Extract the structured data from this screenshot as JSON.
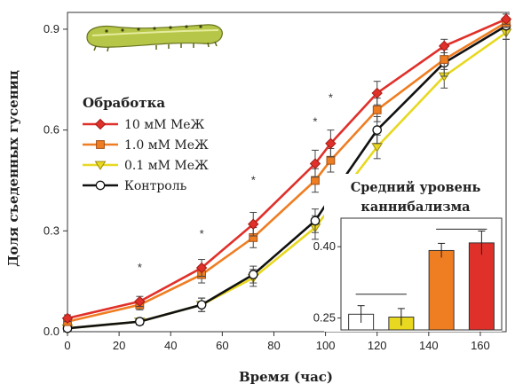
{
  "chart_data": [
    {
      "type": "line",
      "xlabel": "Время (час)",
      "ylabel": "Доля съеденных гусениц",
      "xlim": [
        0,
        170
      ],
      "ylim": [
        0,
        0.95
      ],
      "x_ticks": [
        0,
        20,
        40,
        60,
        80,
        100,
        120,
        140,
        160
      ],
      "y_ticks": [
        0.0,
        0.3,
        0.6,
        0.9
      ],
      "y_tick_labels": [
        "0.0",
        "0.3",
        "0.6",
        "0.9"
      ],
      "legend_title": "Обработка",
      "legend_position": "top-left",
      "x": [
        0,
        28,
        52,
        72,
        96,
        102,
        120,
        146,
        170
      ],
      "series": [
        {
          "name": "10 мМ МеЖ",
          "color": "#e0302a",
          "marker": "diamond",
          "values": [
            0.04,
            0.09,
            0.19,
            0.32,
            0.5,
            0.56,
            0.71,
            0.85,
            0.93
          ],
          "errors": [
            0.01,
            0.015,
            0.025,
            0.035,
            0.04,
            0.04,
            0.035,
            0.02,
            0.015
          ]
        },
        {
          "name": "1.0 мМ МеЖ",
          "color": "#ef7d22",
          "marker": "square",
          "values": [
            0.03,
            0.08,
            0.17,
            0.28,
            0.45,
            0.51,
            0.66,
            0.81,
            0.92
          ],
          "errors": [
            0.01,
            0.015,
            0.025,
            0.03,
            0.035,
            0.035,
            0.035,
            0.03,
            0.015
          ]
        },
        {
          "name": "0.1 мМ МеЖ",
          "color": "#e8d820",
          "marker": "triangle",
          "values": [
            0.01,
            0.03,
            0.08,
            0.16,
            0.31,
            0.37,
            0.55,
            0.76,
            0.89
          ],
          "errors": [
            0.01,
            0.01,
            0.02,
            0.025,
            0.035,
            0.035,
            0.035,
            0.035,
            0.02
          ]
        },
        {
          "name": "Контроль",
          "color": "#111111",
          "marker": "circle",
          "values": [
            0.01,
            0.03,
            0.08,
            0.17,
            0.33,
            0.4,
            0.6,
            0.8,
            0.91
          ],
          "errors": [
            0.01,
            0.01,
            0.02,
            0.025,
            0.035,
            0.035,
            0.04,
            0.04,
            0.04
          ]
        }
      ],
      "significance_markers": [
        {
          "x": 28,
          "y": 0.195,
          "label": "*"
        },
        {
          "x": 52,
          "y": 0.295,
          "label": "*"
        },
        {
          "x": 72,
          "y": 0.455,
          "label": "*"
        },
        {
          "x": 96,
          "y": 0.63,
          "label": "*"
        },
        {
          "x": 102,
          "y": 0.7,
          "label": "*"
        }
      ]
    },
    {
      "type": "bar",
      "title": "Средний уровень каннибализма",
      "categories": [
        "Контроль",
        "0.1 мМ МеЖ",
        "1.0 мМ МеЖ",
        "10 мМ МеЖ"
      ],
      "values": [
        0.258,
        0.252,
        0.392,
        0.408
      ],
      "errors": [
        0.018,
        0.018,
        0.015,
        0.025
      ],
      "colors": [
        "#ffffff",
        "#e8d820",
        "#ef7d22",
        "#e0302a"
      ],
      "ylim": [
        0.225,
        0.46
      ],
      "y_ticks": [
        0.25,
        0.4
      ],
      "y_tick_labels": [
        "0.25",
        "0.40"
      ],
      "group_lines": [
        {
          "from": 0,
          "to": 1,
          "y": 0.3
        },
        {
          "from": 2,
          "to": 3,
          "y": 0.437
        }
      ]
    }
  ]
}
